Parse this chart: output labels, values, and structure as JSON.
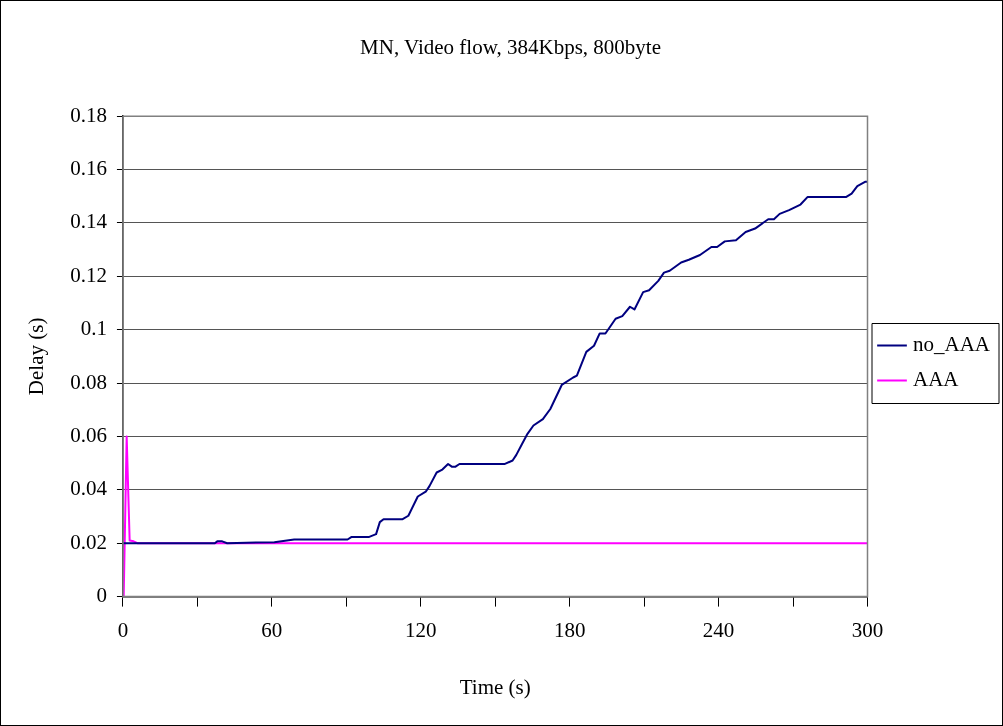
{
  "chart_data": {
    "type": "line",
    "title": "MN, Video flow, 384Kbps, 800byte",
    "xlabel": "Time (s)",
    "ylabel": "Delay (s)",
    "xlim": [
      0,
      300
    ],
    "xticks": [
      0,
      {
        "value": 30,
        "label": null
      },
      60,
      {
        "value": 90,
        "label": null
      },
      120,
      {
        "value": 150,
        "label": null
      },
      180,
      {
        "value": 210,
        "label": null
      },
      240,
      {
        "value": 270,
        "label": null
      },
      300
    ],
    "ylim": [
      0,
      0.18
    ],
    "yticks": [
      0,
      0.02,
      0.04,
      0.06,
      0.08,
      0.1,
      0.12,
      0.14,
      0.16,
      0.18
    ],
    "grid": "y",
    "legend": "right",
    "marker": "none",
    "line_style": "solid",
    "series": [
      {
        "name": "no_AAA",
        "color": "#000080",
        "x": [
          0,
          37,
          38,
          40,
          42,
          61,
          69,
          90.5,
          92,
          99,
          102,
          103.5,
          105,
          112.7,
          115,
          118.8,
          122,
          123.5,
          126.4,
          128.7,
          131,
          132.5,
          134,
          135.6,
          146,
          153.9,
          157,
          158.5,
          160.8,
          163,
          165.4,
          169.2,
          172.2,
          176.8,
          181.4,
          182.9,
          186.7,
          189.8,
          192.1,
          194.4,
          198.5,
          201.2,
          204.3,
          206.1,
          209.6,
          212,
          215.7,
          218,
          220.3,
          224.9,
          228,
          232.5,
          237.1,
          239.4,
          242.5,
          247,
          250.9,
          254.7,
          260,
          262.3,
          264.6,
          268.4,
          273,
          275.8,
          291.3,
          293.6,
          295.9,
          299,
          300
        ],
        "values": [
          0.02,
          0.02,
          0.0207,
          0.0207,
          0.02,
          0.0204,
          0.0214,
          0.0214,
          0.0223,
          0.0223,
          0.0234,
          0.0279,
          0.029,
          0.029,
          0.0303,
          0.0375,
          0.0393,
          0.0414,
          0.0465,
          0.0476,
          0.0497,
          0.0487,
          0.0487,
          0.0497,
          0.0497,
          0.0497,
          0.051,
          0.0531,
          0.0572,
          0.061,
          0.0641,
          0.0665,
          0.0703,
          0.0793,
          0.0821,
          0.0828,
          0.0917,
          0.094,
          0.0986,
          0.0986,
          0.1041,
          0.1051,
          0.1086,
          0.1076,
          0.1141,
          0.1148,
          0.1183,
          0.1214,
          0.1221,
          0.1252,
          0.1262,
          0.128,
          0.131,
          0.131,
          0.1331,
          0.1335,
          0.1366,
          0.1379,
          0.1414,
          0.1414,
          0.1434,
          0.1448,
          0.1469,
          0.1497,
          0.1497,
          0.151,
          0.1538,
          0.1554,
          0.1554
        ]
      },
      {
        "name": "AAA",
        "color": "#ff00ff",
        "x": [
          0,
          0.3,
          1.5,
          2.7,
          4.3,
          5.8,
          300
        ],
        "values": [
          0,
          0,
          0.06,
          0.021,
          0.0207,
          0.02,
          0.02
        ]
      }
    ]
  }
}
